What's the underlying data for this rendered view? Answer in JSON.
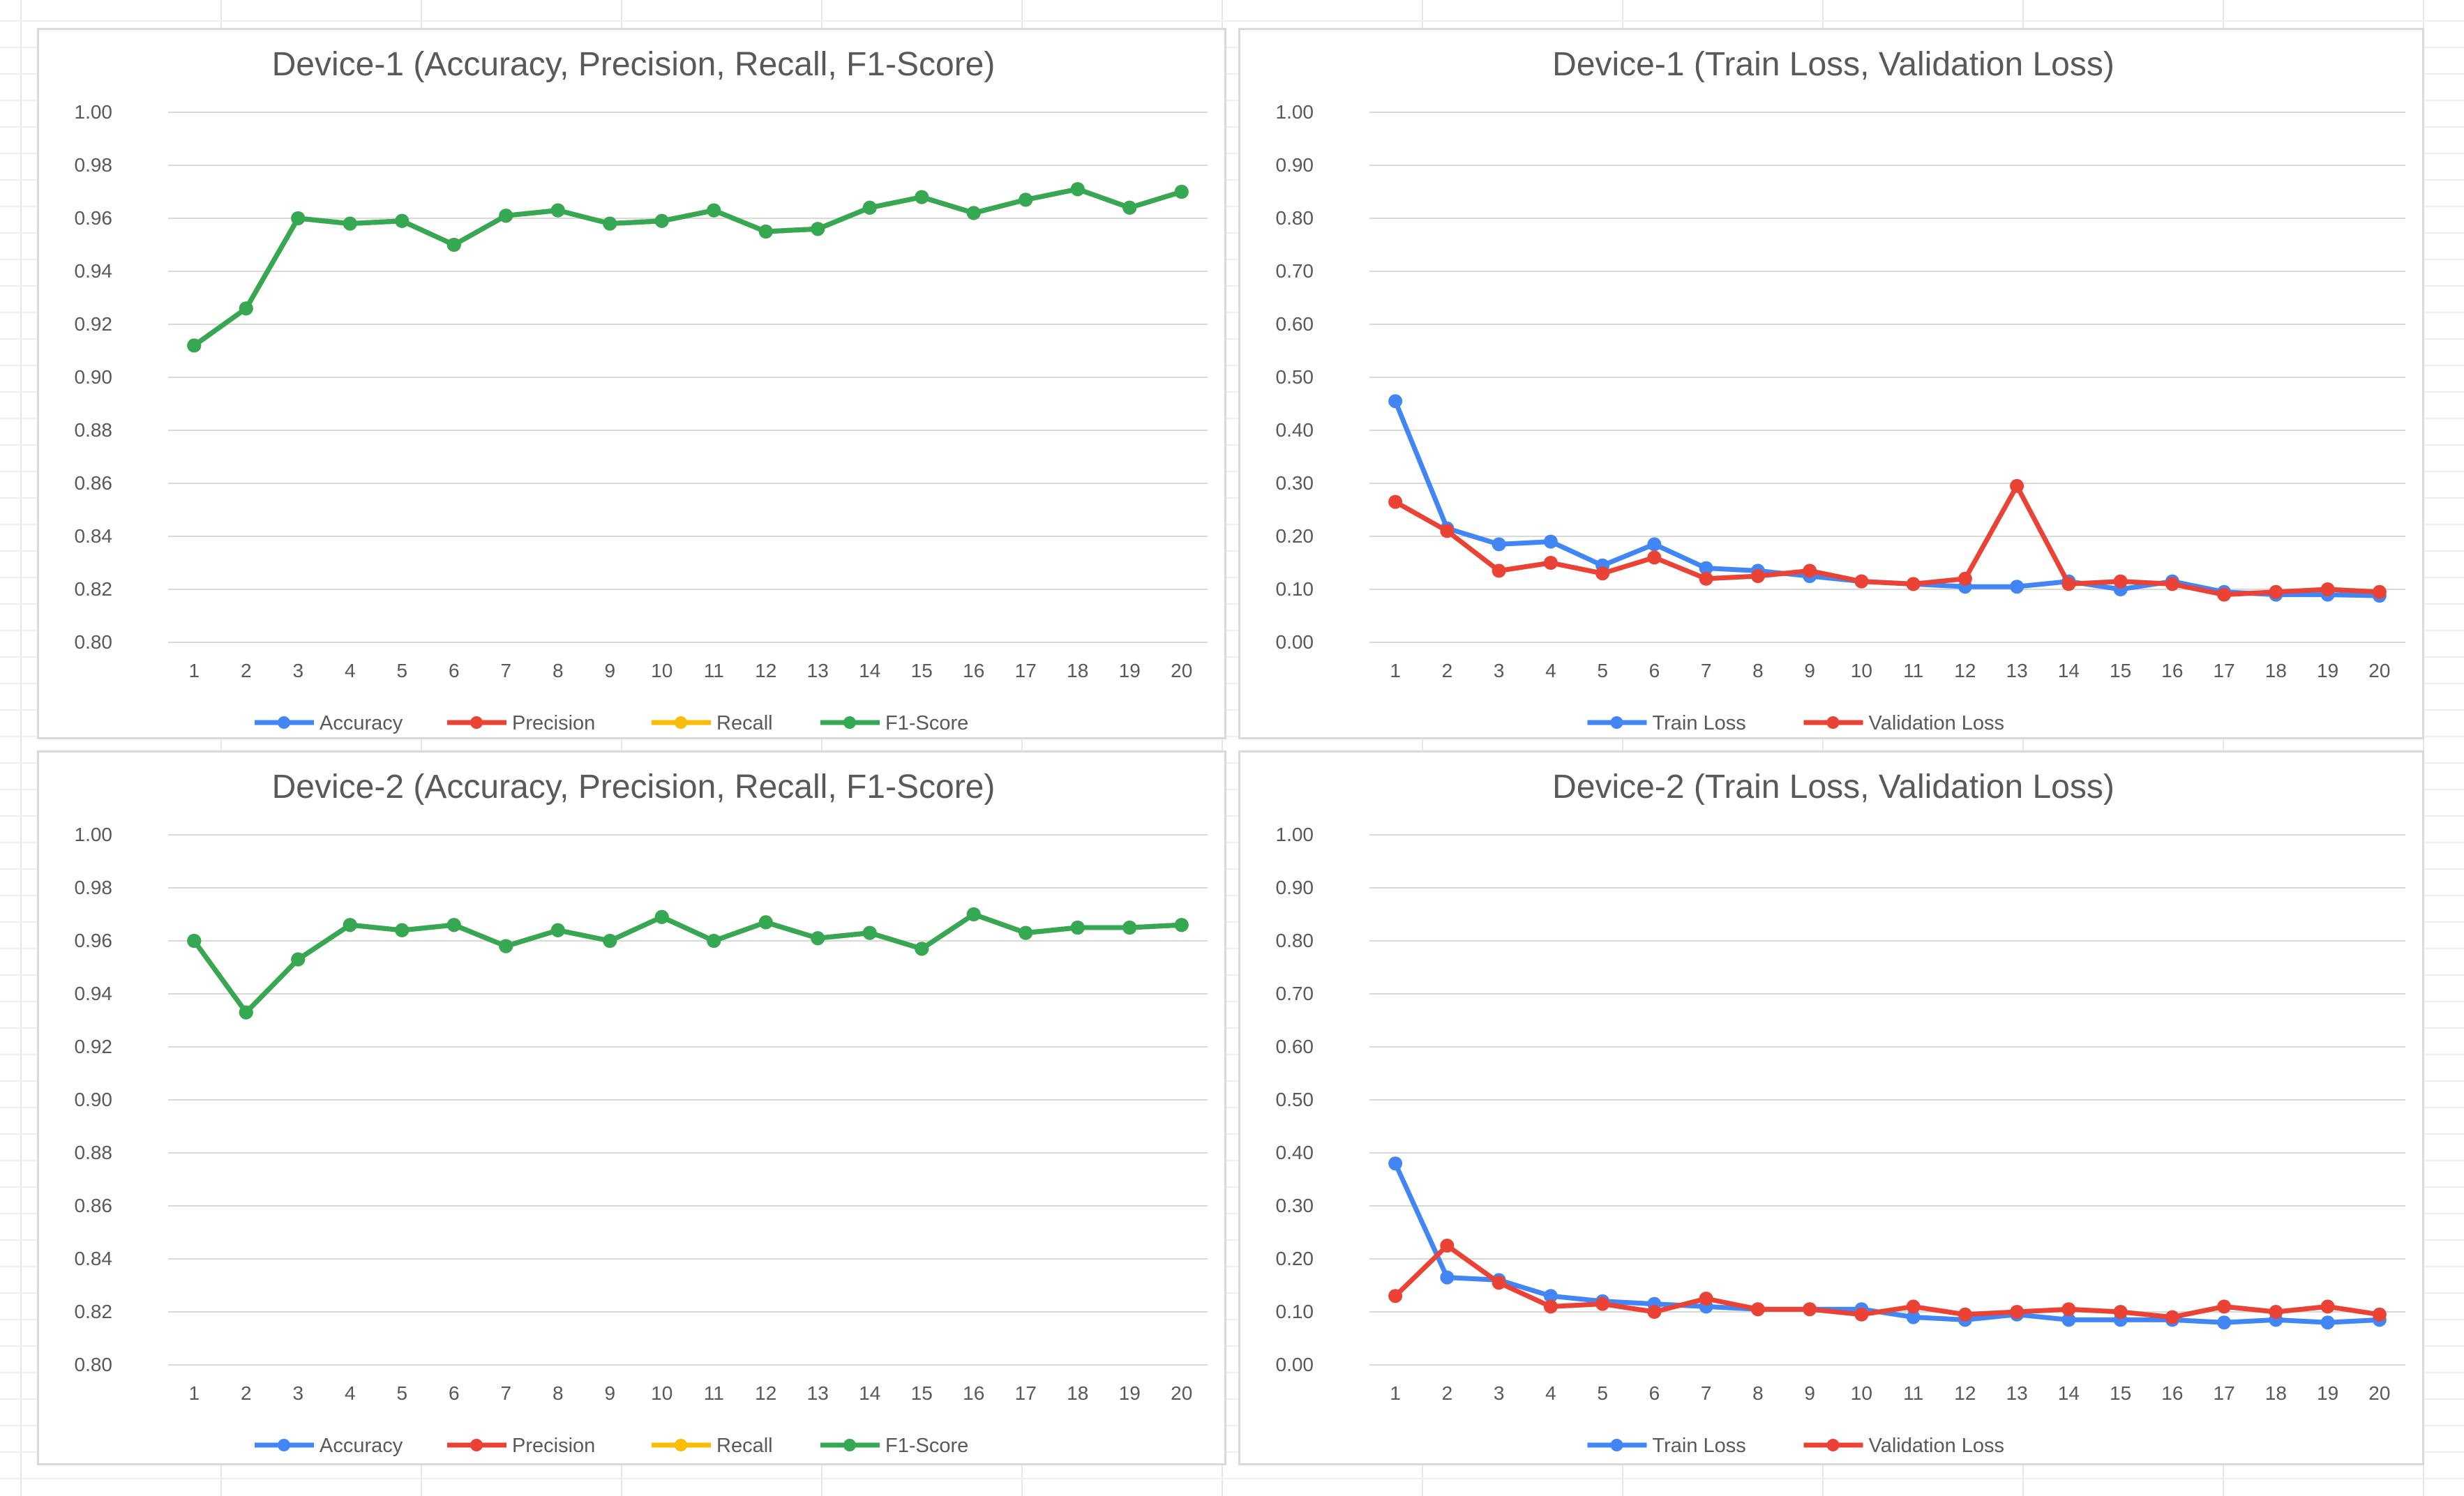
{
  "chart_data": [
    {
      "type": "line",
      "title": "Device-1 (Accuracy, Precision, Recall, F1-Score)",
      "xlabel": "",
      "ylabel": "",
      "ylim": [
        0.8,
        1.0
      ],
      "yticks": [
        "0.80",
        "0.82",
        "0.84",
        "0.86",
        "0.88",
        "0.90",
        "0.92",
        "0.94",
        "0.96",
        "0.98",
        "1.00"
      ],
      "categories": [
        "1",
        "2",
        "3",
        "4",
        "5",
        "6",
        "7",
        "8",
        "9",
        "10",
        "11",
        "12",
        "13",
        "14",
        "15",
        "16",
        "17",
        "18",
        "19",
        "20"
      ],
      "legend_position": "bottom",
      "series": [
        {
          "name": "Accuracy",
          "color": "#4285f4",
          "values": [
            0.912,
            0.926,
            0.96,
            0.958,
            0.959,
            0.95,
            0.961,
            0.963,
            0.958,
            0.959,
            0.963,
            0.955,
            0.956,
            0.964,
            0.968,
            0.962,
            0.967,
            0.971,
            0.964,
            0.97
          ]
        },
        {
          "name": "Precision",
          "color": "#ea4335",
          "values": [
            0.912,
            0.926,
            0.96,
            0.958,
            0.959,
            0.95,
            0.961,
            0.963,
            0.958,
            0.959,
            0.963,
            0.955,
            0.956,
            0.964,
            0.968,
            0.962,
            0.967,
            0.971,
            0.964,
            0.97
          ]
        },
        {
          "name": "Recall",
          "color": "#fbbc04",
          "values": [
            0.912,
            0.926,
            0.96,
            0.958,
            0.959,
            0.95,
            0.961,
            0.963,
            0.958,
            0.959,
            0.963,
            0.955,
            0.956,
            0.964,
            0.968,
            0.962,
            0.967,
            0.971,
            0.964,
            0.97
          ]
        },
        {
          "name": "F1-Score",
          "color": "#34a853",
          "values": [
            0.912,
            0.926,
            0.96,
            0.958,
            0.959,
            0.95,
            0.961,
            0.963,
            0.958,
            0.959,
            0.963,
            0.955,
            0.956,
            0.964,
            0.968,
            0.962,
            0.967,
            0.971,
            0.964,
            0.97
          ]
        }
      ]
    },
    {
      "type": "line",
      "title": "Device-1 (Train Loss, Validation Loss)",
      "xlabel": "",
      "ylabel": "",
      "ylim": [
        0.0,
        1.0
      ],
      "yticks": [
        "0.00",
        "0.10",
        "0.20",
        "0.30",
        "0.40",
        "0.50",
        "0.60",
        "0.70",
        "0.80",
        "0.90",
        "1.00"
      ],
      "categories": [
        "1",
        "2",
        "3",
        "4",
        "5",
        "6",
        "7",
        "8",
        "9",
        "10",
        "11",
        "12",
        "13",
        "14",
        "15",
        "16",
        "17",
        "18",
        "19",
        "20"
      ],
      "legend_position": "bottom",
      "series": [
        {
          "name": "Train Loss",
          "color": "#4285f4",
          "values": [
            0.455,
            0.215,
            0.185,
            0.19,
            0.145,
            0.185,
            0.14,
            0.135,
            0.125,
            0.115,
            0.11,
            0.105,
            0.105,
            0.115,
            0.1,
            0.115,
            0.095,
            0.09,
            0.09,
            0.088
          ]
        },
        {
          "name": "Validation Loss",
          "color": "#ea4335",
          "values": [
            0.265,
            0.21,
            0.135,
            0.15,
            0.13,
            0.16,
            0.12,
            0.125,
            0.135,
            0.115,
            0.11,
            0.12,
            0.295,
            0.11,
            0.115,
            0.11,
            0.09,
            0.095,
            0.1,
            0.095
          ]
        }
      ]
    },
    {
      "type": "line",
      "title": "Device-2 (Accuracy, Precision, Recall, F1-Score)",
      "xlabel": "",
      "ylabel": "",
      "ylim": [
        0.8,
        1.0
      ],
      "yticks": [
        "0.80",
        "0.82",
        "0.84",
        "0.86",
        "0.88",
        "0.90",
        "0.92",
        "0.94",
        "0.96",
        "0.98",
        "1.00"
      ],
      "categories": [
        "1",
        "2",
        "3",
        "4",
        "5",
        "6",
        "7",
        "8",
        "9",
        "10",
        "11",
        "12",
        "13",
        "14",
        "15",
        "16",
        "17",
        "18",
        "19",
        "20"
      ],
      "legend_position": "bottom",
      "series": [
        {
          "name": "Accuracy",
          "color": "#4285f4",
          "values": [
            0.96,
            0.933,
            0.953,
            0.966,
            0.964,
            0.966,
            0.958,
            0.964,
            0.96,
            0.969,
            0.96,
            0.967,
            0.961,
            0.963,
            0.957,
            0.97,
            0.963,
            0.965,
            0.965,
            0.966
          ]
        },
        {
          "name": "Precision",
          "color": "#ea4335",
          "values": [
            0.96,
            0.933,
            0.953,
            0.966,
            0.964,
            0.966,
            0.958,
            0.964,
            0.96,
            0.969,
            0.96,
            0.967,
            0.961,
            0.963,
            0.957,
            0.97,
            0.963,
            0.965,
            0.965,
            0.966
          ]
        },
        {
          "name": "Recall",
          "color": "#fbbc04",
          "values": [
            0.96,
            0.933,
            0.953,
            0.966,
            0.964,
            0.966,
            0.958,
            0.964,
            0.96,
            0.969,
            0.96,
            0.967,
            0.961,
            0.963,
            0.957,
            0.97,
            0.963,
            0.965,
            0.965,
            0.966
          ]
        },
        {
          "name": "F1-Score",
          "color": "#34a853",
          "values": [
            0.96,
            0.933,
            0.953,
            0.966,
            0.964,
            0.966,
            0.958,
            0.964,
            0.96,
            0.969,
            0.96,
            0.967,
            0.961,
            0.963,
            0.957,
            0.97,
            0.963,
            0.965,
            0.965,
            0.966
          ]
        }
      ]
    },
    {
      "type": "line",
      "title": "Device-2 (Train Loss, Validation Loss)",
      "xlabel": "",
      "ylabel": "",
      "ylim": [
        0.0,
        1.0
      ],
      "yticks": [
        "0.00",
        "0.10",
        "0.20",
        "0.30",
        "0.40",
        "0.50",
        "0.60",
        "0.70",
        "0.80",
        "0.90",
        "1.00"
      ],
      "categories": [
        "1",
        "2",
        "3",
        "4",
        "5",
        "6",
        "7",
        "8",
        "9",
        "10",
        "11",
        "12",
        "13",
        "14",
        "15",
        "16",
        "17",
        "18",
        "19",
        "20"
      ],
      "legend_position": "bottom",
      "series": [
        {
          "name": "Train Loss",
          "color": "#4285f4",
          "values": [
            0.38,
            0.165,
            0.16,
            0.13,
            0.12,
            0.115,
            0.11,
            0.105,
            0.105,
            0.105,
            0.09,
            0.085,
            0.095,
            0.085,
            0.085,
            0.085,
            0.08,
            0.085,
            0.08,
            0.085
          ]
        },
        {
          "name": "Validation Loss",
          "color": "#ea4335",
          "values": [
            0.13,
            0.225,
            0.155,
            0.11,
            0.115,
            0.1,
            0.125,
            0.105,
            0.105,
            0.095,
            0.11,
            0.095,
            0.1,
            0.105,
            0.1,
            0.09,
            0.11,
            0.1,
            0.11,
            0.095
          ]
        }
      ]
    }
  ]
}
